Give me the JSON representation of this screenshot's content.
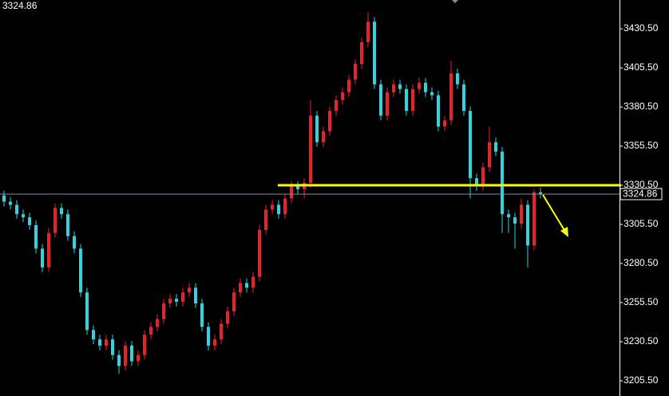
{
  "chart_data": {
    "type": "candlestick",
    "last_price": 3324.86,
    "level": 3330.5,
    "up_color": "#e8242b",
    "down_color": "#35d2dc",
    "level_color": "#ffff00",
    "ylim": [
      3195.8,
      3448.9
    ],
    "yticks": [
      {
        "value": 3430.5,
        "label": "3430.50"
      },
      {
        "value": 3405.5,
        "label": "3405.50"
      },
      {
        "value": 3380.5,
        "label": "3380.50"
      },
      {
        "value": 3355.5,
        "label": "3355.50"
      },
      {
        "value": 3330.5,
        "label": "3330.50"
      },
      {
        "value": 3305.5,
        "label": "3305.50"
      },
      {
        "value": 3280.5,
        "label": "3280.50"
      },
      {
        "value": 3255.5,
        "label": "3255.50"
      },
      {
        "value": 3230.5,
        "label": "3230.50"
      },
      {
        "value": 3205.5,
        "label": "3205.50"
      }
    ],
    "candles": [
      [
        3324,
        3327,
        3317,
        3320
      ],
      [
        3320,
        3323,
        3315,
        3318
      ],
      [
        3318,
        3321,
        3309,
        3312
      ],
      [
        3312,
        3315,
        3307,
        3310
      ],
      [
        3310,
        3313,
        3302,
        3305
      ],
      [
        3305,
        3308,
        3287,
        3290
      ],
      [
        3290,
        3293,
        3275,
        3278
      ],
      [
        3278,
        3303,
        3275,
        3300
      ],
      [
        3300,
        3319,
        3297,
        3316
      ],
      [
        3316,
        3319,
        3309,
        3312
      ],
      [
        3312,
        3315,
        3295,
        3298
      ],
      [
        3298,
        3301,
        3287,
        3290
      ],
      [
        3290,
        3293,
        3259,
        3262
      ],
      [
        3262,
        3265,
        3235,
        3238
      ],
      [
        3238,
        3241,
        3229,
        3232
      ],
      [
        3232,
        3235,
        3225,
        3228
      ],
      [
        3228,
        3235,
        3225,
        3232
      ],
      [
        3232,
        3235,
        3219,
        3222
      ],
      [
        3222,
        3225,
        3210,
        3215
      ],
      [
        3215,
        3231,
        3212,
        3228
      ],
      [
        3228,
        3231,
        3215,
        3218
      ],
      [
        3218,
        3225,
        3215,
        3222
      ],
      [
        3222,
        3238,
        3219,
        3235
      ],
      [
        3235,
        3243,
        3232,
        3240
      ],
      [
        3240,
        3248,
        3237,
        3245
      ],
      [
        3245,
        3258,
        3242,
        3255
      ],
      [
        3255,
        3261,
        3252,
        3258
      ],
      [
        3258,
        3261,
        3253,
        3256
      ],
      [
        3256,
        3265,
        3253,
        3262
      ],
      [
        3262,
        3268,
        3259,
        3265
      ],
      [
        3265,
        3268,
        3252,
        3255
      ],
      [
        3255,
        3258,
        3237,
        3240
      ],
      [
        3240,
        3243,
        3225,
        3228
      ],
      [
        3228,
        3235,
        3225,
        3232
      ],
      [
        3232,
        3245,
        3229,
        3242
      ],
      [
        3242,
        3253,
        3239,
        3250
      ],
      [
        3250,
        3265,
        3247,
        3262
      ],
      [
        3262,
        3271,
        3259,
        3268
      ],
      [
        3268,
        3271,
        3262,
        3265
      ],
      [
        3265,
        3275,
        3262,
        3272
      ],
      [
        3272,
        3305,
        3269,
        3302
      ],
      [
        3302,
        3318,
        3299,
        3315
      ],
      [
        3315,
        3321,
        3312,
        3318
      ],
      [
        3318,
        3321,
        3309,
        3312
      ],
      [
        3312,
        3325,
        3309,
        3322
      ],
      [
        3322,
        3333,
        3319,
        3330
      ],
      [
        3330,
        3333,
        3325,
        3328
      ],
      [
        3328,
        3335,
        3322,
        3332
      ],
      [
        3332,
        3385,
        3329,
        3375
      ],
      [
        3375,
        3378,
        3355,
        3358
      ],
      [
        3358,
        3368,
        3355,
        3365
      ],
      [
        3365,
        3381,
        3362,
        3378
      ],
      [
        3378,
        3388,
        3375,
        3385
      ],
      [
        3385,
        3393,
        3382,
        3390
      ],
      [
        3390,
        3401,
        3387,
        3398
      ],
      [
        3398,
        3411,
        3395,
        3408
      ],
      [
        3408,
        3425,
        3405,
        3422
      ],
      [
        3422,
        3441,
        3419,
        3435
      ],
      [
        3435,
        3438,
        3392,
        3395
      ],
      [
        3395,
        3398,
        3372,
        3375
      ],
      [
        3375,
        3393,
        3372,
        3390
      ],
      [
        3390,
        3398,
        3387,
        3395
      ],
      [
        3395,
        3398,
        3389,
        3392
      ],
      [
        3392,
        3395,
        3375,
        3378
      ],
      [
        3378,
        3395,
        3375,
        3392
      ],
      [
        3392,
        3399,
        3389,
        3396
      ],
      [
        3396,
        3399,
        3387,
        3390
      ],
      [
        3390,
        3393,
        3385,
        3388
      ],
      [
        3388,
        3391,
        3365,
        3368
      ],
      [
        3368,
        3375,
        3365,
        3372
      ],
      [
        3372,
        3410,
        3369,
        3402
      ],
      [
        3402,
        3405,
        3392,
        3395
      ],
      [
        3395,
        3398,
        3375,
        3378
      ],
      [
        3378,
        3381,
        3322,
        3335
      ],
      [
        3335,
        3338,
        3327,
        3330
      ],
      [
        3330,
        3345,
        3327,
        3342
      ],
      [
        3342,
        3368,
        3339,
        3358
      ],
      [
        3358,
        3361,
        3349,
        3352
      ],
      [
        3352,
        3355,
        3300,
        3312
      ],
      [
        3312,
        3315,
        3300,
        3310
      ],
      [
        3310,
        3313,
        3290,
        3306
      ],
      [
        3306,
        3322,
        3303,
        3318
      ],
      [
        3318,
        3321,
        3278,
        3292
      ],
      [
        3292,
        3328,
        3289,
        3326
      ],
      [
        3326,
        3329,
        3322,
        3324.86
      ]
    ]
  }
}
